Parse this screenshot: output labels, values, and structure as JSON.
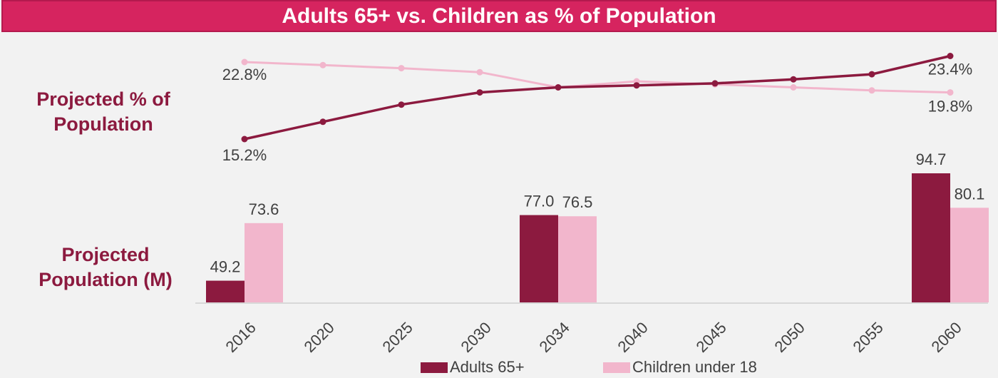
{
  "title": "Adults 65+ vs. Children as % of Population",
  "side_labels": {
    "top": "Projected % of Population",
    "bottom": "Projected Population (M)"
  },
  "colors": {
    "title_bg": "#d6245f",
    "adults": "#8c1a3f",
    "children": "#f2b6cc",
    "label_text": "#8c1a3f",
    "value_text": "#404040"
  },
  "legend": [
    {
      "name": "Adults 65+",
      "color": "#8c1a3f"
    },
    {
      "name": "Children under 18",
      "color": "#f2b6cc"
    }
  ],
  "chart_data": [
    {
      "type": "line",
      "categories": [
        "2016",
        "2020",
        "2025",
        "2030",
        "2034",
        "2040",
        "2045",
        "2050",
        "2055",
        "2060"
      ],
      "series": [
        {
          "name": "Adults 65+",
          "values": [
            15.2,
            16.9,
            18.6,
            19.8,
            20.3,
            20.5,
            20.7,
            21.1,
            21.6,
            23.4
          ],
          "labels": {
            "0": "15.2%",
            "9": "23.4%"
          }
        },
        {
          "name": "Children under 18",
          "values": [
            22.8,
            22.5,
            22.2,
            21.8,
            20.3,
            20.9,
            20.6,
            20.3,
            20.0,
            19.8
          ],
          "labels": {
            "0": "22.8%",
            "9": "19.8%"
          }
        }
      ],
      "ylim": [
        14,
        24
      ]
    },
    {
      "type": "bar",
      "categories": [
        "2016",
        "2020",
        "2025",
        "2030",
        "2034",
        "2040",
        "2045",
        "2050",
        "2055",
        "2060"
      ],
      "series": [
        {
          "name": "Adults 65+",
          "values": [
            49.2,
            null,
            null,
            null,
            77.0,
            null,
            null,
            null,
            null,
            94.7
          ],
          "labels": {
            "0": "49.2",
            "4": "77.0",
            "9": "94.7"
          }
        },
        {
          "name": "Children under 18",
          "values": [
            73.6,
            null,
            null,
            null,
            76.5,
            null,
            null,
            null,
            null,
            80.1
          ],
          "labels": {
            "0": "73.6",
            "4": "76.5",
            "9": "80.1"
          }
        }
      ],
      "ylim": [
        40,
        95
      ]
    }
  ]
}
